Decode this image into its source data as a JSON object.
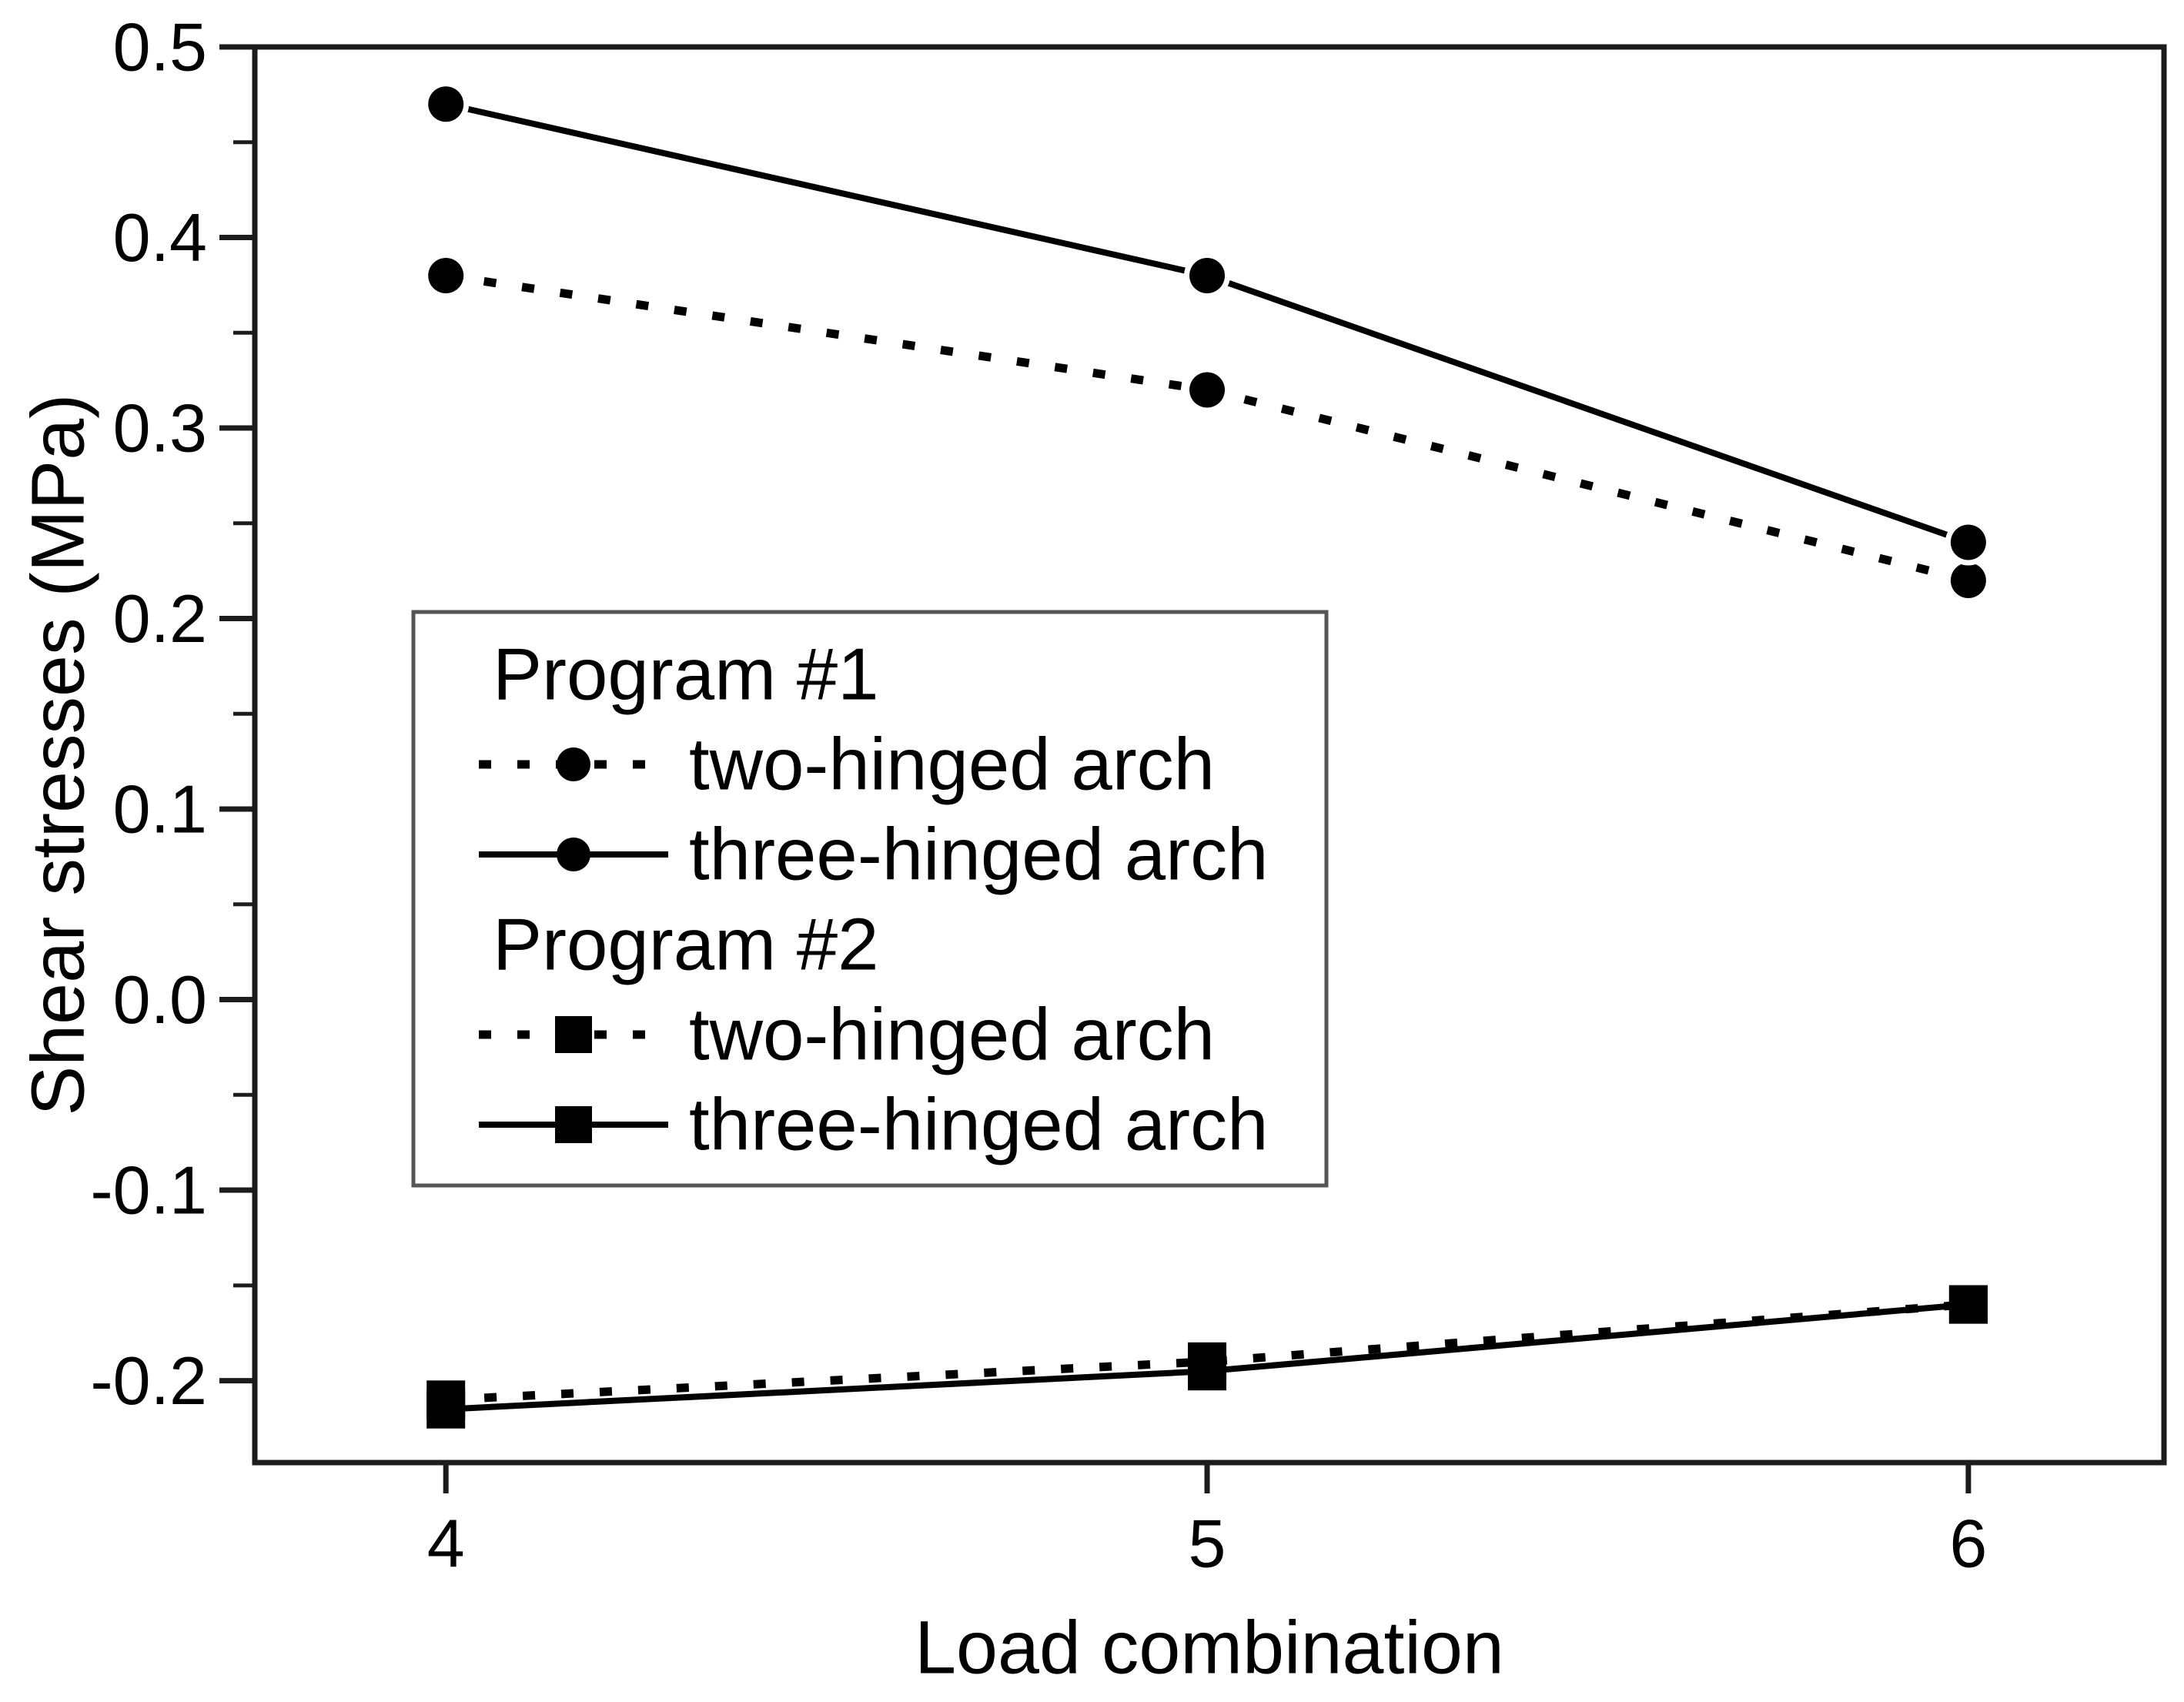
{
  "figure": {
    "background": "#ffffff",
    "ink_color": "#000000",
    "frame_color": "#1c1c1c",
    "legend_border_color": "#555555"
  },
  "chart_data": {
    "type": "line",
    "title": "",
    "xlabel": "Load combination",
    "ylabel": "Shear stresses (MPa)",
    "x": [
      4,
      5,
      6
    ],
    "x_ticks": [
      4,
      5,
      6
    ],
    "x_tick_labels": [
      "4",
      "5",
      "6"
    ],
    "xlim": [
      3.749,
      6.257
    ],
    "ylim": [
      -0.243,
      0.5
    ],
    "y_major_ticks": [
      0.5,
      0.4,
      0.3,
      0.2,
      0.1,
      0.0,
      -0.1,
      -0.2
    ],
    "y_tick_labels": [
      "0.5",
      "0.4",
      "0.3",
      "0.2",
      "0.1",
      "0.0",
      "-0.1",
      "-0.2"
    ],
    "y_minor_ticks": [
      0.45,
      0.35,
      0.25,
      0.15,
      0.05,
      -0.05,
      -0.15
    ],
    "grid": false,
    "legend_position": "middle-left",
    "series": [
      {
        "group": "Program #1",
        "label": "two-hinged arch",
        "marker": "circle",
        "line_style": "dotted",
        "values": [
          0.38,
          0.32,
          0.22
        ]
      },
      {
        "group": "Program #1",
        "label": "three-hinged arch",
        "marker": "circle",
        "line_style": "solid",
        "values": [
          0.47,
          0.38,
          0.24
        ]
      },
      {
        "group": "Program #2",
        "label": "two-hinged arch",
        "marker": "square",
        "line_style": "dotted",
        "values": [
          -0.21,
          -0.19,
          -0.16
        ]
      },
      {
        "group": "Program #2",
        "label": "three-hinged arch",
        "marker": "square",
        "line_style": "solid",
        "values": [
          -0.215,
          -0.195,
          -0.16
        ]
      }
    ],
    "legend": {
      "entries": [
        {
          "type": "header",
          "text": "Program #1"
        },
        {
          "type": "sample",
          "text": "two-hinged arch",
          "marker": "circle",
          "line_style": "dotted"
        },
        {
          "type": "sample",
          "text": "three-hinged arch",
          "marker": "circle",
          "line_style": "solid"
        },
        {
          "type": "header",
          "text": "Program #2"
        },
        {
          "type": "sample",
          "text": "two-hinged arch",
          "marker": "square",
          "line_style": "dotted"
        },
        {
          "type": "sample",
          "text": "three-hinged arch",
          "marker": "square",
          "line_style": "solid"
        }
      ]
    }
  }
}
